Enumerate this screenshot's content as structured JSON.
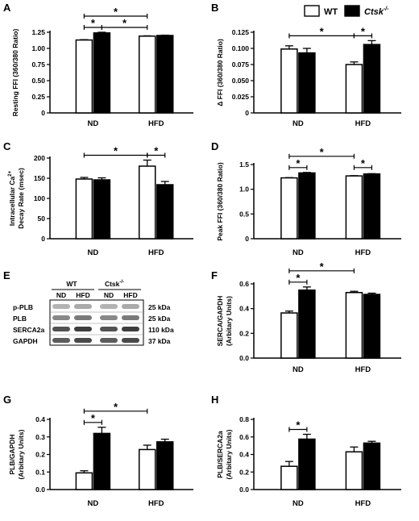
{
  "legend": [
    {
      "label": "WT",
      "fill": "#ffffff"
    },
    {
      "label": "Ctsk",
      "sup": "-/-",
      "fill": "#000000",
      "italic": true
    }
  ],
  "colors": {
    "wt": "#ffffff",
    "ko": "#000000",
    "axis": "#000000"
  },
  "chart_data": [
    {
      "letter": "A",
      "type": "bar",
      "ylabel": "Resting FFI (360/380 Ratio)",
      "categories": [
        "ND",
        "HFD"
      ],
      "series": [
        {
          "name": "WT",
          "values": [
            1.13,
            1.19
          ],
          "errors": [
            0.005,
            0.005
          ]
        },
        {
          "name": "Ctsk-/-",
          "values": [
            1.24,
            1.2
          ],
          "errors": [
            0.01,
            0.005
          ]
        }
      ],
      "ylim": [
        0,
        1.25
      ],
      "yticks": [
        "0",
        "0.25",
        "0.50",
        "0.75",
        "1.00",
        "1.25"
      ],
      "sig": [
        {
          "from": [
            0,
            0
          ],
          "to": [
            0,
            1
          ],
          "level": 1
        },
        {
          "from": [
            0,
            1
          ],
          "to": [
            1,
            0
          ],
          "level": 1
        },
        {
          "from": [
            0,
            0
          ],
          "to": [
            1,
            0
          ],
          "level": 2
        }
      ]
    },
    {
      "letter": "B",
      "type": "bar",
      "ylabel": "Δ FFI (360/380 Ratio)",
      "categories": [
        "ND",
        "HFD"
      ],
      "series": [
        {
          "name": "WT",
          "values": [
            0.099,
            0.075
          ],
          "errors": [
            0.005,
            0.004
          ]
        },
        {
          "name": "Ctsk-/-",
          "values": [
            0.093,
            0.106
          ],
          "errors": [
            0.007,
            0.006
          ]
        }
      ],
      "ylim": [
        0,
        0.125
      ],
      "yticks": [
        "0",
        "0.025",
        "0.050",
        "0.075",
        "0.100",
        "0.125"
      ],
      "sig": [
        {
          "from": [
            0,
            0
          ],
          "to": [
            1,
            0
          ],
          "level": 1
        },
        {
          "from": [
            1,
            0
          ],
          "to": [
            1,
            1
          ],
          "level": 1
        }
      ]
    },
    {
      "letter": "C",
      "type": "bar",
      "ylabel": "Intracellular Ca2+ Decay Rate (msec)",
      "ylabel_lines": [
        "Intracellular Ca",
        "Decay Rate (msec)"
      ],
      "ylabel_sup": "2+",
      "categories": [
        "ND",
        "HFD"
      ],
      "series": [
        {
          "name": "WT",
          "values": [
            148,
            180
          ],
          "errors": [
            4,
            15
          ]
        },
        {
          "name": "Ctsk-/-",
          "values": [
            146,
            134
          ],
          "errors": [
            5,
            8
          ]
        }
      ],
      "ylim": [
        0,
        200
      ],
      "yticks": [
        "0",
        "50",
        "100",
        "150",
        "200"
      ],
      "sig": [
        {
          "from": [
            0,
            0
          ],
          "to": [
            1,
            0
          ],
          "level": 1
        },
        {
          "from": [
            1,
            0
          ],
          "to": [
            1,
            1
          ],
          "level": 1
        }
      ]
    },
    {
      "letter": "D",
      "type": "bar",
      "ylabel": "Peak FFI (360/380 Ratio)",
      "categories": [
        "ND",
        "HFD"
      ],
      "series": [
        {
          "name": "WT",
          "values": [
            1.23,
            1.27
          ],
          "errors": [
            0.005,
            0.005
          ]
        },
        {
          "name": "Ctsk-/-",
          "values": [
            1.33,
            1.31
          ],
          "errors": [
            0.01,
            0.005
          ]
        }
      ],
      "ylim": [
        0,
        1.5
      ],
      "yticks": [
        "0",
        "0.5",
        "1.0",
        "1.5"
      ],
      "sig": [
        {
          "from": [
            0,
            0
          ],
          "to": [
            0,
            1
          ],
          "level": 1
        },
        {
          "from": [
            1,
            0
          ],
          "to": [
            1,
            1
          ],
          "level": 1
        },
        {
          "from": [
            0,
            0
          ],
          "to": [
            1,
            0
          ],
          "level": 2
        }
      ]
    },
    {
      "letter": "F",
      "type": "bar",
      "ylabel": "SERCA/GAPDH (Arbitary Units)",
      "ylabel_lines": [
        "SERCA/GAPDH",
        "(Arbitary Units)"
      ],
      "categories": [
        "ND",
        "HFD"
      ],
      "series": [
        {
          "name": "WT",
          "values": [
            0.365,
            0.53
          ],
          "errors": [
            0.015,
            0.01
          ]
        },
        {
          "name": "Ctsk-/-",
          "values": [
            0.55,
            0.515
          ],
          "errors": [
            0.025,
            0.01
          ]
        }
      ],
      "ylim": [
        0,
        0.6
      ],
      "yticks": [
        "0.0",
        "0.2",
        "0.4",
        "0.6"
      ],
      "sig": [
        {
          "from": [
            0,
            0
          ],
          "to": [
            0,
            1
          ],
          "level": 1
        },
        {
          "from": [
            0,
            0
          ],
          "to": [
            1,
            0
          ],
          "level": 2
        }
      ]
    },
    {
      "letter": "G",
      "type": "bar",
      "ylabel": "PLB/GAPDH (Arbitary Units)",
      "ylabel_lines": [
        "PLB/GAPDH",
        "(Arbitary Units)"
      ],
      "categories": [
        "ND",
        "HFD"
      ],
      "series": [
        {
          "name": "WT",
          "values": [
            0.095,
            0.228
          ],
          "errors": [
            0.012,
            0.025
          ]
        },
        {
          "name": "Ctsk-/-",
          "values": [
            0.32,
            0.272
          ],
          "errors": [
            0.035,
            0.015
          ]
        }
      ],
      "ylim": [
        0,
        0.4
      ],
      "yticks": [
        "0.0",
        "0.1",
        "0.2",
        "0.3",
        "0.4"
      ],
      "sig": [
        {
          "from": [
            0,
            0
          ],
          "to": [
            0,
            1
          ],
          "level": 1
        },
        {
          "from": [
            0,
            0
          ],
          "to": [
            1,
            0
          ],
          "level": 2
        }
      ]
    },
    {
      "letter": "H",
      "type": "bar",
      "ylabel": "PLB/SERCA2a (Arbitary Units)",
      "ylabel_lines": [
        "PLB/SERCA2a",
        "(Arbitary Units)"
      ],
      "categories": [
        "ND",
        "HFD"
      ],
      "series": [
        {
          "name": "WT",
          "values": [
            0.265,
            0.43
          ],
          "errors": [
            0.055,
            0.055
          ]
        },
        {
          "name": "Ctsk-/-",
          "values": [
            0.575,
            0.53
          ],
          "errors": [
            0.055,
            0.02
          ]
        }
      ],
      "ylim": [
        0,
        0.8
      ],
      "yticks": [
        "0.0",
        "0.2",
        "0.4",
        "0.6",
        "0.8"
      ],
      "sig": [
        {
          "from": [
            0,
            0
          ],
          "to": [
            0,
            1
          ],
          "level": 1
        }
      ]
    }
  ],
  "blot": {
    "letter": "E",
    "groups": [
      {
        "label": "WT"
      },
      {
        "label": "Ctsk",
        "sup": "-/-"
      }
    ],
    "lane_labels": [
      "ND",
      "HFD",
      "ND",
      "HFD"
    ],
    "rows": [
      {
        "name": "p-PLB",
        "size": "25 kDa"
      },
      {
        "name": "PLB",
        "size": "25 kDa"
      },
      {
        "name": "SERCA2a",
        "size": "110 kDa"
      },
      {
        "name": "GAPDH",
        "size": "37 kDa"
      }
    ]
  },
  "sig_symbol": "*"
}
